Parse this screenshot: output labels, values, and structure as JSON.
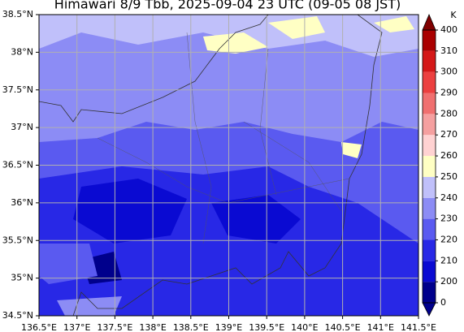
{
  "chart_data": {
    "type": "map",
    "title": "Himawari 8/9 Tbb, 2025-09-04 23 UTC (09-05 08 JST)",
    "xlim": [
      136.5,
      141.5
    ],
    "ylim": [
      34.5,
      38.5
    ],
    "xticks": [
      {
        "value": 136.5,
        "label": "136.5°E"
      },
      {
        "value": 137,
        "label": "137°E"
      },
      {
        "value": 137.5,
        "label": "137.5°E"
      },
      {
        "value": 138,
        "label": "138°E"
      },
      {
        "value": 138.5,
        "label": "138.5°E"
      },
      {
        "value": 139,
        "label": "139°E"
      },
      {
        "value": 139.5,
        "label": "139.5°E"
      },
      {
        "value": 140,
        "label": "140°E"
      },
      {
        "value": 140.5,
        "label": "140.5°E"
      },
      {
        "value": 141,
        "label": "141°E"
      },
      {
        "value": 141.5,
        "label": "141.5°E"
      }
    ],
    "yticks": [
      {
        "value": 34.5,
        "label": "34.5°N"
      },
      {
        "value": 35,
        "label": "35°N"
      },
      {
        "value": 35.5,
        "label": "35.5°N"
      },
      {
        "value": 36,
        "label": "36°N"
      },
      {
        "value": 36.5,
        "label": "36.5°N"
      },
      {
        "value": 37,
        "label": "37°N"
      },
      {
        "value": 37.5,
        "label": "37.5°N"
      },
      {
        "value": 38,
        "label": "38°N"
      },
      {
        "value": 38.5,
        "label": "38.5°N"
      }
    ],
    "grid": true,
    "colorbar": {
      "label": "K",
      "ticks": [
        0,
        200,
        210,
        220,
        230,
        240,
        250,
        260,
        270,
        280,
        290,
        300,
        310,
        400
      ],
      "colors": [
        "#00008c",
        "#0a0ad2",
        "#2828e6",
        "#5a5af0",
        "#8c8cf5",
        "#c0c0fa",
        "#ffffc4",
        "#ffd2d2",
        "#f5a0a0",
        "#f07070",
        "#ec4040",
        "#d41818",
        "#aa0000"
      ],
      "under_color": "#00008c",
      "over_color": "#800000"
    }
  }
}
